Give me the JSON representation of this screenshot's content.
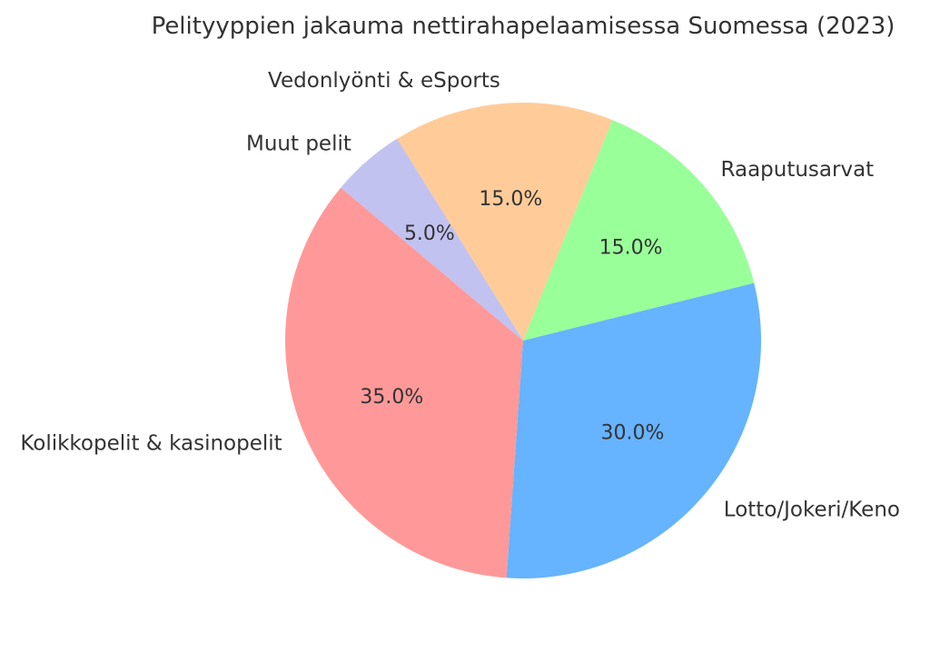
{
  "title": "Pelityyppien jakauma nettirahapelaamisessa Suomessa (2023)",
  "chart_data": {
    "type": "pie",
    "title": "Pelityyppien jakauma nettirahapelaamisessa Suomessa (2023)",
    "slices": [
      {
        "label": "Kolikkopelit & kasinopelit",
        "value": 35.0,
        "pct_label": "35.0%",
        "color": "#ff9999"
      },
      {
        "label": "Lotto/Jokeri/Keno",
        "value": 30.0,
        "pct_label": "30.0%",
        "color": "#66b3ff"
      },
      {
        "label": "Raaputusarvat",
        "value": 15.0,
        "pct_label": "15.0%",
        "color": "#99ff99"
      },
      {
        "label": "Vedonlyönti & eSports",
        "value": 15.0,
        "pct_label": "15.0%",
        "color": "#ffcc99"
      },
      {
        "label": "Muut pelit",
        "value": 5.0,
        "pct_label": "5.0%",
        "color": "#c2c2f0"
      }
    ],
    "start_angle": 140,
    "direction": "counterclockwise",
    "label_distance": 1.1,
    "pct_distance": 0.6,
    "legend": "none",
    "background": "#ffffff",
    "text_color": "#333333"
  }
}
